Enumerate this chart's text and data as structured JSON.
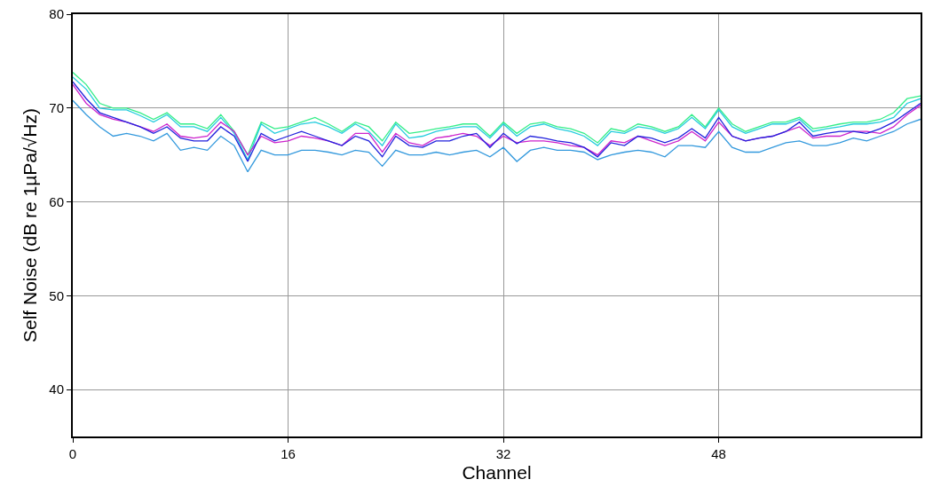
{
  "chart_data": {
    "type": "line",
    "xlabel": "Channel",
    "ylabel": "Self Noise (dB re 1µPa/√Hz)",
    "x": [
      0,
      1,
      2,
      3,
      4,
      5,
      6,
      7,
      8,
      9,
      10,
      11,
      12,
      13,
      14,
      15,
      16,
      17,
      18,
      19,
      20,
      21,
      22,
      23,
      24,
      25,
      26,
      27,
      28,
      29,
      30,
      31,
      32,
      33,
      34,
      35,
      36,
      37,
      38,
      39,
      40,
      41,
      42,
      43,
      44,
      45,
      46,
      47,
      48,
      49,
      50,
      51,
      52,
      53,
      54,
      55,
      56,
      57,
      58,
      59,
      60,
      61,
      62,
      63
    ],
    "xlim": [
      0,
      63
    ],
    "xticks": [
      0,
      16,
      32,
      48
    ],
    "ylim": [
      35,
      80
    ],
    "yticks": [
      40,
      50,
      60,
      70,
      80
    ],
    "grid": true,
    "marker": "none",
    "line_style": "solid",
    "series": [
      {
        "color": "#33ee88",
        "values": [
          73.8,
          72.5,
          70.5,
          70,
          70,
          69.5,
          68.8,
          69.5,
          68.3,
          68.3,
          67.8,
          69.3,
          67.5,
          65,
          68.5,
          67.8,
          68,
          68.5,
          69,
          68.3,
          67.5,
          68.5,
          68,
          66.5,
          68.5,
          67.3,
          67.5,
          67.8,
          68,
          68.3,
          68.3,
          67,
          68.5,
          67.3,
          68.3,
          68.5,
          68,
          67.8,
          67.3,
          66.3,
          67.8,
          67.5,
          68.3,
          68,
          67.5,
          68,
          69.3,
          68,
          70,
          68.3,
          67.5,
          68,
          68.5,
          68.5,
          69,
          67.8,
          68,
          68.3,
          68.5,
          68.5,
          68.8,
          69.5,
          71,
          71.3
        ]
      },
      {
        "color": "#22ccdd",
        "values": [
          73.3,
          72,
          70,
          69.8,
          69.8,
          69.2,
          68.5,
          69.3,
          68,
          68,
          67.5,
          69,
          67.3,
          64.5,
          68.3,
          67.3,
          67.8,
          68.3,
          68.5,
          68,
          67.3,
          68.3,
          67.5,
          66,
          68.3,
          66.8,
          67,
          67.5,
          67.8,
          68,
          68,
          66.8,
          68.3,
          67,
          68,
          68.3,
          67.8,
          67.5,
          67,
          66,
          67.5,
          67.3,
          68,
          67.8,
          67.3,
          67.8,
          69,
          67.8,
          69.8,
          68,
          67.3,
          67.8,
          68.3,
          68.3,
          68.8,
          67.5,
          67.8,
          68,
          68.3,
          68.3,
          68.5,
          69,
          70.5,
          71
        ]
      },
      {
        "color": "#cc22cc",
        "values": [
          72.5,
          70.5,
          69.3,
          68.8,
          68.5,
          68,
          67.5,
          68.3,
          67,
          66.8,
          67,
          68.5,
          67.5,
          65,
          67,
          66.3,
          66.5,
          67,
          66.8,
          66.5,
          66,
          67.3,
          67.3,
          65.3,
          67.3,
          66.3,
          66,
          66.8,
          67,
          67.3,
          67,
          66,
          67,
          66.3,
          66.5,
          66.5,
          66.3,
          66,
          65.8,
          65,
          66.5,
          66.3,
          67,
          66.5,
          66,
          66.5,
          67.5,
          66.5,
          68.5,
          67,
          66.5,
          66.8,
          67,
          67.5,
          68,
          66.8,
          67,
          67,
          67.5,
          67.5,
          67.3,
          68,
          69.3,
          70.3
        ]
      },
      {
        "color": "#2222dd",
        "values": [
          72.8,
          71,
          69.5,
          69,
          68.5,
          68,
          67.3,
          68,
          66.8,
          66.5,
          66.5,
          68,
          67,
          64.3,
          67.3,
          66.5,
          67,
          67.5,
          67,
          66.5,
          66,
          67,
          66.5,
          64.8,
          67,
          66,
          65.8,
          66.5,
          66.5,
          67,
          67.3,
          65.8,
          67.3,
          66.2,
          67,
          66.8,
          66.5,
          66.3,
          65.8,
          64.8,
          66.3,
          66,
          67,
          66.8,
          66.3,
          66.8,
          67.8,
          66.8,
          69,
          67,
          66.5,
          66.8,
          67,
          67.5,
          68.5,
          67,
          67.3,
          67.5,
          67.5,
          67.3,
          67.8,
          68.5,
          69.5,
          70.5
        ]
      },
      {
        "color": "#3399dd",
        "values": [
          70.8,
          69.3,
          68,
          67,
          67.3,
          67,
          66.5,
          67.3,
          65.5,
          65.8,
          65.5,
          67,
          66,
          63.2,
          65.5,
          65,
          65,
          65.5,
          65.5,
          65.3,
          65,
          65.5,
          65.3,
          63.8,
          65.5,
          65,
          65,
          65.3,
          65,
          65.3,
          65.5,
          64.8,
          65.8,
          64.3,
          65.5,
          65.8,
          65.5,
          65.5,
          65.3,
          64.5,
          65,
          65.3,
          65.5,
          65.3,
          64.8,
          66,
          66,
          65.8,
          67.5,
          65.8,
          65.3,
          65.3,
          65.8,
          66.3,
          66.5,
          66,
          66,
          66.3,
          66.8,
          66.5,
          67,
          67.5,
          68.3,
          68.8
        ]
      }
    ]
  }
}
